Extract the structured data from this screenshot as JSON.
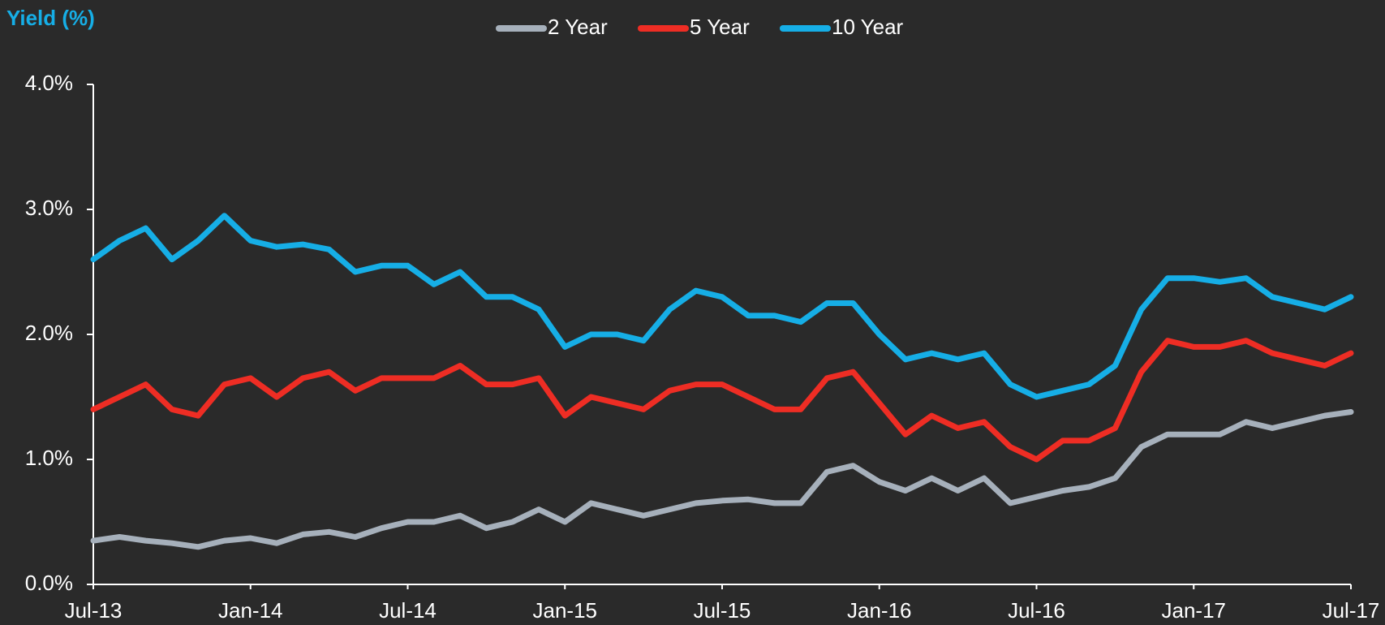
{
  "chart_data": {
    "type": "line",
    "title": "Yield (%)",
    "x": [
      "2013-07",
      "2013-08",
      "2013-09",
      "2013-10",
      "2013-11",
      "2013-12",
      "2014-01",
      "2014-02",
      "2014-03",
      "2014-04",
      "2014-05",
      "2014-06",
      "2014-07",
      "2014-08",
      "2014-09",
      "2014-10",
      "2014-11",
      "2014-12",
      "2015-01",
      "2015-02",
      "2015-03",
      "2015-04",
      "2015-05",
      "2015-06",
      "2015-07",
      "2015-08",
      "2015-09",
      "2015-10",
      "2015-11",
      "2015-12",
      "2016-01",
      "2016-02",
      "2016-03",
      "2016-04",
      "2016-05",
      "2016-06",
      "2016-07",
      "2016-08",
      "2016-09",
      "2016-10",
      "2016-11",
      "2016-12",
      "2017-01",
      "2017-02",
      "2017-03",
      "2017-04",
      "2017-05",
      "2017-06",
      "2017-07"
    ],
    "series": [
      {
        "name": "2 Year",
        "color": "#a6b0bb",
        "values": [
          0.35,
          0.38,
          0.35,
          0.33,
          0.3,
          0.35,
          0.37,
          0.33,
          0.4,
          0.42,
          0.38,
          0.45,
          0.5,
          0.5,
          0.55,
          0.45,
          0.5,
          0.6,
          0.5,
          0.65,
          0.6,
          0.55,
          0.6,
          0.65,
          0.67,
          0.68,
          0.65,
          0.65,
          0.9,
          0.95,
          0.82,
          0.75,
          0.85,
          0.75,
          0.85,
          0.65,
          0.7,
          0.75,
          0.78,
          0.85,
          1.1,
          1.2,
          1.2,
          1.2,
          1.3,
          1.25,
          1.3,
          1.35,
          1.38
        ]
      },
      {
        "name": "5 Year",
        "color": "#ee2d24",
        "values": [
          1.4,
          1.5,
          1.6,
          1.4,
          1.35,
          1.6,
          1.65,
          1.5,
          1.65,
          1.7,
          1.55,
          1.65,
          1.65,
          1.65,
          1.75,
          1.6,
          1.6,
          1.65,
          1.35,
          1.5,
          1.45,
          1.4,
          1.55,
          1.6,
          1.6,
          1.5,
          1.4,
          1.4,
          1.65,
          1.7,
          1.45,
          1.2,
          1.35,
          1.25,
          1.3,
          1.1,
          1.0,
          1.15,
          1.15,
          1.25,
          1.7,
          1.95,
          1.9,
          1.9,
          1.95,
          1.85,
          1.8,
          1.75,
          1.85
        ]
      },
      {
        "name": "10 Year",
        "color": "#16aee6",
        "values": [
          2.6,
          2.75,
          2.85,
          2.6,
          2.75,
          2.95,
          2.75,
          2.7,
          2.72,
          2.68,
          2.5,
          2.55,
          2.55,
          2.4,
          2.5,
          2.3,
          2.3,
          2.2,
          1.9,
          2.0,
          2.0,
          1.95,
          2.2,
          2.35,
          2.3,
          2.15,
          2.15,
          2.1,
          2.25,
          2.25,
          2.0,
          1.8,
          1.85,
          1.8,
          1.85,
          1.6,
          1.5,
          1.55,
          1.6,
          1.75,
          2.2,
          2.45,
          2.45,
          2.42,
          2.45,
          2.3,
          2.25,
          2.2,
          2.3
        ]
      }
    ],
    "xlim": [
      "2013-07",
      "2017-07"
    ],
    "xticks": [
      {
        "value": "2013-07",
        "label": "Jul-13"
      },
      {
        "value": "2014-01",
        "label": "Jan-14"
      },
      {
        "value": "2014-07",
        "label": "Jul-14"
      },
      {
        "value": "2015-01",
        "label": "Jan-15"
      },
      {
        "value": "2015-07",
        "label": "Jul-15"
      },
      {
        "value": "2016-01",
        "label": "Jan-16"
      },
      {
        "value": "2016-07",
        "label": "Jul-16"
      },
      {
        "value": "2017-01",
        "label": "Jan-17"
      },
      {
        "value": "2017-07",
        "label": "Jul-17"
      }
    ],
    "ylim": [
      0,
      4
    ],
    "yticks": [
      {
        "value": 0,
        "label": "0.0%"
      },
      {
        "value": 1,
        "label": "1.0%"
      },
      {
        "value": 2,
        "label": "2.0%"
      },
      {
        "value": 3,
        "label": "3.0%"
      },
      {
        "value": 4,
        "label": "4.0%"
      }
    ],
    "legend": "top"
  }
}
